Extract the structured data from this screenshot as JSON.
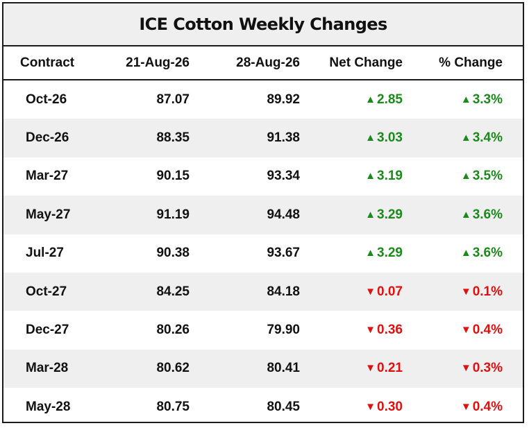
{
  "title": "ICE Cotton Weekly Changes",
  "columns": [
    "Contract",
    "21-Aug-26",
    "28-Aug-26",
    "Net Change",
    "% Change"
  ],
  "colors": {
    "up": "#1a8a1a",
    "down": "#e01010",
    "shaded_row": "#efefef"
  },
  "rows": [
    {
      "contract": "Oct-26",
      "prev": "87.07",
      "curr": "89.92",
      "direction": "up",
      "arrow": "▲",
      "net": "2.85",
      "pct": "3.3%"
    },
    {
      "contract": "Dec-26",
      "prev": "88.35",
      "curr": "91.38",
      "direction": "up",
      "arrow": "▲",
      "net": "3.03",
      "pct": "3.4%"
    },
    {
      "contract": "Mar-27",
      "prev": "90.15",
      "curr": "93.34",
      "direction": "up",
      "arrow": "▲",
      "net": "3.19",
      "pct": "3.5%"
    },
    {
      "contract": "May-27",
      "prev": "91.19",
      "curr": "94.48",
      "direction": "up",
      "arrow": "▲",
      "net": "3.29",
      "pct": "3.6%"
    },
    {
      "contract": "Jul-27",
      "prev": "90.38",
      "curr": "93.67",
      "direction": "up",
      "arrow": "▲",
      "net": "3.29",
      "pct": "3.6%"
    },
    {
      "contract": "Oct-27",
      "prev": "84.25",
      "curr": "84.18",
      "direction": "down",
      "arrow": "▼",
      "net": "0.07",
      "pct": "0.1%"
    },
    {
      "contract": "Dec-27",
      "prev": "80.26",
      "curr": "79.90",
      "direction": "down",
      "arrow": "▼",
      "net": "0.36",
      "pct": "0.4%"
    },
    {
      "contract": "Mar-28",
      "prev": "80.62",
      "curr": "80.41",
      "direction": "down",
      "arrow": "▼",
      "net": "0.21",
      "pct": "0.3%"
    },
    {
      "contract": "May-28",
      "prev": "80.75",
      "curr": "80.45",
      "direction": "down",
      "arrow": "▼",
      "net": "0.30",
      "pct": "0.4%"
    }
  ],
  "chart_data": {
    "type": "table",
    "title": "ICE Cotton Weekly Changes",
    "columns": [
      "Contract",
      "21-Aug-26",
      "28-Aug-26",
      "Net Change",
      "% Change"
    ],
    "categories": [
      "Oct-26",
      "Dec-26",
      "Mar-27",
      "May-27",
      "Jul-27",
      "Oct-27",
      "Dec-27",
      "Mar-28",
      "May-28"
    ],
    "series": [
      {
        "name": "21-Aug-26",
        "values": [
          87.07,
          88.35,
          90.15,
          91.19,
          90.38,
          84.25,
          80.26,
          80.62,
          80.75
        ]
      },
      {
        "name": "28-Aug-26",
        "values": [
          89.92,
          91.38,
          93.34,
          94.48,
          93.67,
          84.18,
          79.9,
          80.41,
          80.45
        ]
      },
      {
        "name": "Net Change",
        "values": [
          2.85,
          3.03,
          3.19,
          3.29,
          3.29,
          -0.07,
          -0.36,
          -0.21,
          -0.3
        ]
      },
      {
        "name": "% Change",
        "values": [
          3.3,
          3.4,
          3.5,
          3.6,
          3.6,
          -0.1,
          -0.4,
          -0.3,
          -0.4
        ]
      }
    ]
  }
}
